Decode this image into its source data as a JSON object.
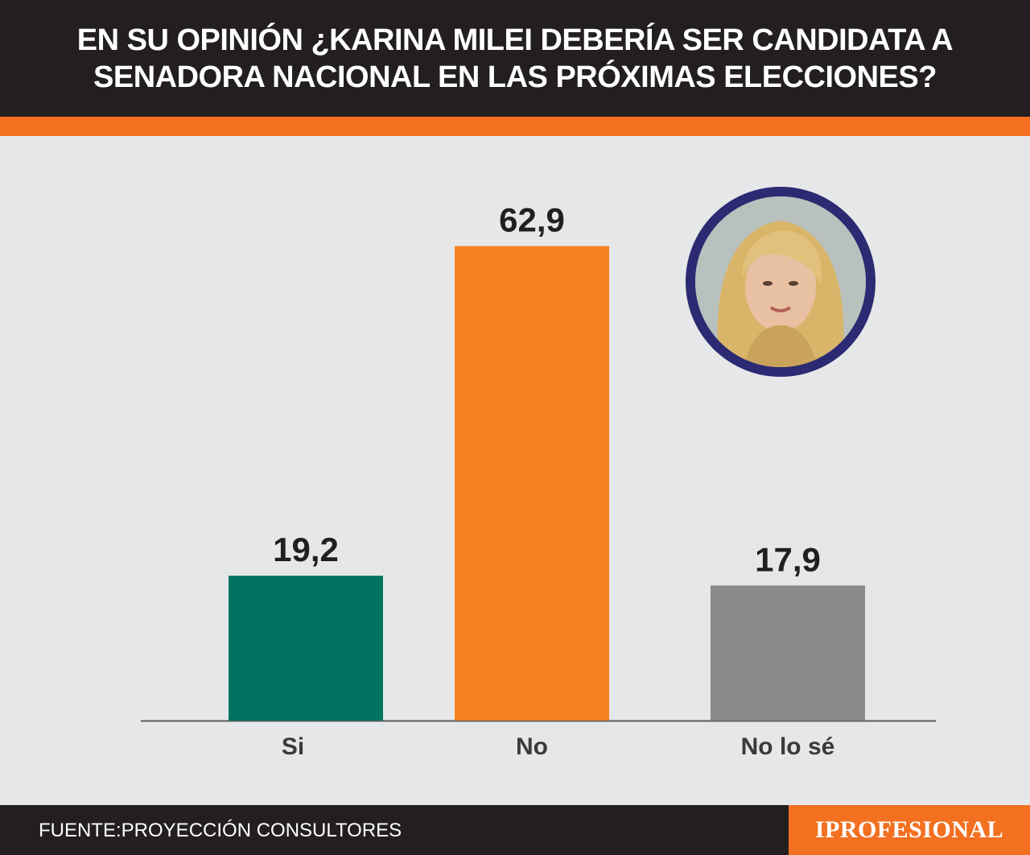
{
  "header": {
    "title_line1": "EN SU OPINIÓN ¿KARINA MILEI DEBERÍA SER CANDIDATA A",
    "title_line2": "SENADORA NACIONAL EN LAS PRÓXIMAS ELECCIONES?"
  },
  "colors": {
    "header_bg": "#231f20",
    "accent_orange": "#f37021",
    "background": "#e6e7e8",
    "avatar_ring": "#2b2a72"
  },
  "chart_data": {
    "type": "bar",
    "categories": [
      "Si",
      "No",
      "No lo sé"
    ],
    "values": [
      19.2,
      62.9,
      17.9
    ],
    "value_labels": [
      "19,2",
      "62,9",
      "17,9"
    ],
    "colors": [
      "#007461",
      "#f58220",
      "#8a8a8a"
    ],
    "ylim": [
      0,
      75
    ],
    "grid": false,
    "legend": "none"
  },
  "avatar": {
    "icon": "portrait-photo-icon"
  },
  "footer": {
    "source": "FUENTE:PROYECCIÓN CONSULTORES",
    "brand": "IPROFESIONAL"
  }
}
